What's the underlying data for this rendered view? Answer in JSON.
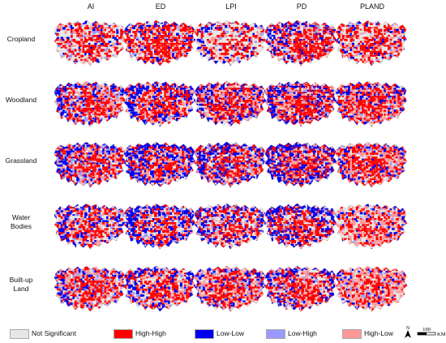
{
  "columns": [
    "AI",
    "ED",
    "LPI",
    "PD",
    "PLAND"
  ],
  "rows": [
    {
      "lines": [
        "Cropland"
      ]
    },
    {
      "lines": [
        "Woodland"
      ]
    },
    {
      "lines": [
        "Grassland"
      ]
    },
    {
      "lines": [
        "Water",
        "Bodies"
      ]
    },
    {
      "lines": [
        "Built-up",
        "Land"
      ]
    }
  ],
  "legend": [
    {
      "label": "Not Significant",
      "color": "#e6e6e6"
    },
    {
      "label": "High-High",
      "color": "#ff0000"
    },
    {
      "label": "Low-Low",
      "color": "#0000ee"
    },
    {
      "label": "Low-High",
      "color": "#9999ff"
    },
    {
      "label": "High-Low",
      "color": "#ff9999"
    }
  ],
  "north_arrow": {
    "label": "N"
  },
  "scale_bar": {
    "value": "100",
    "unit": "KM"
  },
  "cluster_mix": [
    [
      [
        0.55,
        0.25,
        0.05,
        0.05,
        0.1
      ],
      [
        0.35,
        0.4,
        0.1,
        0.05,
        0.1
      ],
      [
        0.6,
        0.2,
        0.05,
        0.05,
        0.1
      ],
      [
        0.35,
        0.4,
        0.1,
        0.05,
        0.1
      ],
      [
        0.45,
        0.3,
        0.05,
        0.05,
        0.15
      ]
    ],
    [
      [
        0.25,
        0.3,
        0.15,
        0.1,
        0.2
      ],
      [
        0.25,
        0.3,
        0.2,
        0.05,
        0.2
      ],
      [
        0.25,
        0.35,
        0.15,
        0.05,
        0.2
      ],
      [
        0.2,
        0.35,
        0.2,
        0.05,
        0.2
      ],
      [
        0.2,
        0.35,
        0.1,
        0.05,
        0.3
      ]
    ],
    [
      [
        0.25,
        0.3,
        0.15,
        0.1,
        0.2
      ],
      [
        0.2,
        0.3,
        0.25,
        0.05,
        0.2
      ],
      [
        0.25,
        0.3,
        0.2,
        0.05,
        0.2
      ],
      [
        0.2,
        0.3,
        0.25,
        0.05,
        0.2
      ],
      [
        0.25,
        0.35,
        0.1,
        0.05,
        0.25
      ]
    ],
    [
      [
        0.35,
        0.25,
        0.15,
        0.05,
        0.2
      ],
      [
        0.35,
        0.25,
        0.2,
        0.05,
        0.15
      ],
      [
        0.4,
        0.25,
        0.15,
        0.05,
        0.15
      ],
      [
        0.35,
        0.3,
        0.2,
        0.05,
        0.1
      ],
      [
        0.4,
        0.2,
        0.05,
        0.05,
        0.3
      ]
    ],
    [
      [
        0.3,
        0.3,
        0.1,
        0.1,
        0.2
      ],
      [
        0.3,
        0.3,
        0.15,
        0.05,
        0.2
      ],
      [
        0.3,
        0.3,
        0.1,
        0.05,
        0.25
      ],
      [
        0.3,
        0.3,
        0.15,
        0.05,
        0.2
      ],
      [
        0.35,
        0.25,
        0.05,
        0.05,
        0.3
      ]
    ]
  ]
}
